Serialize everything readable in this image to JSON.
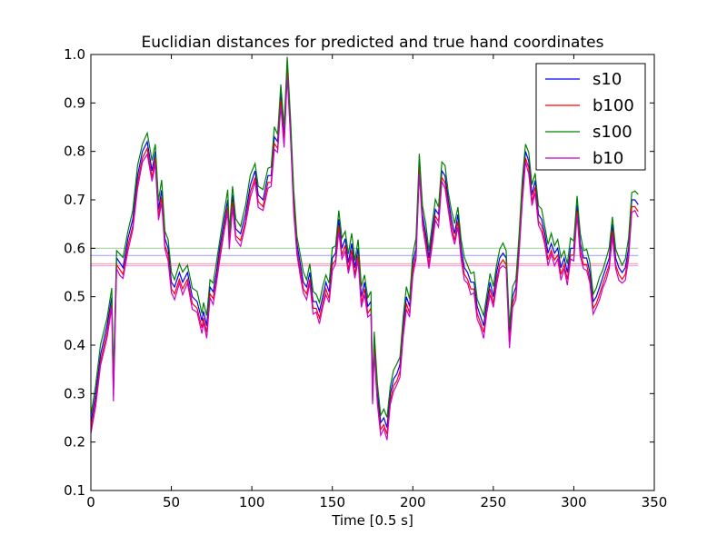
{
  "chart_data": {
    "type": "line",
    "title": "Euclidian distances for predicted and true hand coordinates",
    "xlabel": "Time [0.5 s]",
    "ylabel": "",
    "xlim": [
      0,
      350
    ],
    "ylim": [
      0.1,
      1.0
    ],
    "xticks": [
      0,
      50,
      100,
      150,
      200,
      250,
      300,
      350
    ],
    "yticks": [
      0.1,
      0.2,
      0.3,
      0.4,
      0.5,
      0.6,
      0.7,
      0.8,
      0.9,
      1.0
    ],
    "grid": false,
    "legend_position": "top-right",
    "series": [
      {
        "name": "s10",
        "color": "#0000ff",
        "mean": 0.585,
        "offset": 0.0,
        "points": [
          [
            0,
            0.24
          ],
          [
            3,
            0.3
          ],
          [
            6,
            0.38
          ],
          [
            10,
            0.44
          ],
          [
            13,
            0.5
          ],
          [
            14,
            0.31
          ],
          [
            16,
            0.58
          ],
          [
            18,
            0.57
          ],
          [
            20,
            0.56
          ],
          [
            23,
            0.62
          ],
          [
            26,
            0.66
          ],
          [
            29,
            0.75
          ],
          [
            32,
            0.8
          ],
          [
            35,
            0.82
          ],
          [
            38,
            0.76
          ],
          [
            40,
            0.8
          ],
          [
            42,
            0.68
          ],
          [
            44,
            0.72
          ],
          [
            46,
            0.62
          ],
          [
            48,
            0.6
          ],
          [
            50,
            0.53
          ],
          [
            52,
            0.52
          ],
          [
            55,
            0.55
          ],
          [
            57,
            0.53
          ],
          [
            60,
            0.55
          ],
          [
            63,
            0.5
          ],
          [
            66,
            0.49
          ],
          [
            69,
            0.45
          ],
          [
            70,
            0.47
          ],
          [
            72,
            0.44
          ],
          [
            74,
            0.52
          ],
          [
            76,
            0.51
          ],
          [
            78,
            0.55
          ],
          [
            80,
            0.6
          ],
          [
            83,
            0.66
          ],
          [
            85,
            0.7
          ],
          [
            86,
            0.62
          ],
          [
            88,
            0.71
          ],
          [
            90,
            0.64
          ],
          [
            93,
            0.63
          ],
          [
            96,
            0.67
          ],
          [
            99,
            0.73
          ],
          [
            102,
            0.76
          ],
          [
            104,
            0.71
          ],
          [
            107,
            0.7
          ],
          [
            110,
            0.75
          ],
          [
            112,
            0.75
          ],
          [
            114,
            0.83
          ],
          [
            116,
            0.82
          ],
          [
            118,
            0.92
          ],
          [
            120,
            0.83
          ],
          [
            122,
            0.98
          ],
          [
            124,
            0.85
          ],
          [
            126,
            0.7
          ],
          [
            128,
            0.61
          ],
          [
            130,
            0.57
          ],
          [
            132,
            0.53
          ],
          [
            134,
            0.52
          ],
          [
            136,
            0.55
          ],
          [
            138,
            0.49
          ],
          [
            140,
            0.49
          ],
          [
            142,
            0.47
          ],
          [
            144,
            0.5
          ],
          [
            146,
            0.53
          ],
          [
            148,
            0.51
          ],
          [
            150,
            0.58
          ],
          [
            152,
            0.59
          ],
          [
            154,
            0.66
          ],
          [
            156,
            0.6
          ],
          [
            158,
            0.62
          ],
          [
            160,
            0.57
          ],
          [
            162,
            0.61
          ],
          [
            164,
            0.56
          ],
          [
            166,
            0.6
          ],
          [
            168,
            0.5
          ],
          [
            170,
            0.53
          ],
          [
            172,
            0.48
          ],
          [
            174,
            0.49
          ],
          [
            175,
            0.3
          ],
          [
            176,
            0.41
          ],
          [
            178,
            0.3
          ],
          [
            180,
            0.24
          ],
          [
            182,
            0.25
          ],
          [
            184,
            0.23
          ],
          [
            186,
            0.3
          ],
          [
            188,
            0.33
          ],
          [
            190,
            0.34
          ],
          [
            192,
            0.36
          ],
          [
            194,
            0.44
          ],
          [
            196,
            0.5
          ],
          [
            198,
            0.48
          ],
          [
            200,
            0.57
          ],
          [
            202,
            0.6
          ],
          [
            204,
            0.78
          ],
          [
            206,
            0.67
          ],
          [
            208,
            0.63
          ],
          [
            210,
            0.58
          ],
          [
            212,
            0.63
          ],
          [
            214,
            0.68
          ],
          [
            216,
            0.67
          ],
          [
            218,
            0.76
          ],
          [
            220,
            0.75
          ],
          [
            222,
            0.7
          ],
          [
            224,
            0.66
          ],
          [
            226,
            0.63
          ],
          [
            228,
            0.67
          ],
          [
            230,
            0.6
          ],
          [
            232,
            0.56
          ],
          [
            234,
            0.55
          ],
          [
            236,
            0.53
          ],
          [
            238,
            0.53
          ],
          [
            240,
            0.48
          ],
          [
            242,
            0.46
          ],
          [
            244,
            0.44
          ],
          [
            246,
            0.49
          ],
          [
            248,
            0.53
          ],
          [
            250,
            0.5
          ],
          [
            252,
            0.55
          ],
          [
            254,
            0.58
          ],
          [
            256,
            0.59
          ],
          [
            258,
            0.58
          ],
          [
            260,
            0.42
          ],
          [
            262,
            0.5
          ],
          [
            264,
            0.52
          ],
          [
            266,
            0.61
          ],
          [
            268,
            0.72
          ],
          [
            270,
            0.8
          ],
          [
            272,
            0.78
          ],
          [
            274,
            0.71
          ],
          [
            276,
            0.74
          ],
          [
            278,
            0.67
          ],
          [
            280,
            0.66
          ],
          [
            282,
            0.63
          ],
          [
            284,
            0.59
          ],
          [
            286,
            0.61
          ],
          [
            288,
            0.59
          ],
          [
            290,
            0.6
          ],
          [
            292,
            0.56
          ],
          [
            294,
            0.58
          ],
          [
            296,
            0.55
          ],
          [
            298,
            0.6
          ],
          [
            300,
            0.6
          ],
          [
            302,
            0.69
          ],
          [
            304,
            0.61
          ],
          [
            306,
            0.58
          ],
          [
            308,
            0.58
          ],
          [
            310,
            0.55
          ],
          [
            312,
            0.49
          ],
          [
            314,
            0.5
          ],
          [
            316,
            0.52
          ],
          [
            318,
            0.54
          ],
          [
            320,
            0.56
          ],
          [
            322,
            0.58
          ],
          [
            324,
            0.65
          ],
          [
            326,
            0.58
          ],
          [
            328,
            0.56
          ],
          [
            330,
            0.55
          ],
          [
            332,
            0.56
          ],
          [
            334,
            0.6
          ],
          [
            336,
            0.7
          ],
          [
            338,
            0.7
          ],
          [
            340,
            0.69
          ]
        ]
      },
      {
        "name": "b100",
        "color": "#ff0000",
        "mean": 0.568,
        "offset": -0.014,
        "points": []
      },
      {
        "name": "s100",
        "color": "#008000",
        "mean": 0.6,
        "offset": 0.018,
        "points": []
      },
      {
        "name": "b10",
        "color": "#cc00cc",
        "mean": 0.564,
        "offset": -0.022,
        "points": []
      }
    ]
  }
}
